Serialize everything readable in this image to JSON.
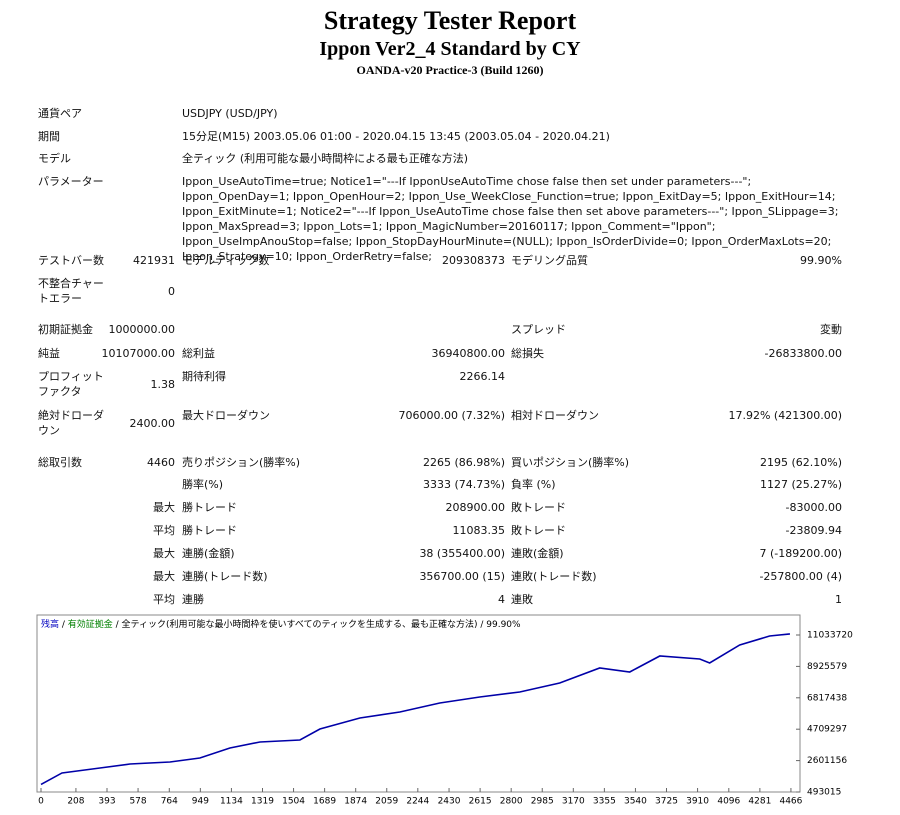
{
  "header": {
    "title": "Strategy Tester Report",
    "subtitle": "Ippon Ver2_4 Standard by CY",
    "build": "OANDA-v20 Practice-3 (Build 1260)"
  },
  "rows": [
    {
      "label": "通貨ペア",
      "label2": "USDJPY (USD/JPY)"
    },
    {
      "label": "期間",
      "label2": "15分足(M15) 2003.05.06 01:00 - 2020.04.15 13:45 (2003.05.04 - 2020.04.21)"
    },
    {
      "label": "モデル",
      "label2": "全ティック (利用可能な最小時間枠による最も正確な方法)"
    },
    {
      "label": "パラメーター",
      "label2": "Ippon_UseAutoTime=true; Notice1=\"---If IpponUseAutoTime chose false then set under parameters---\"; Ippon_OpenDay=1; Ippon_OpenHour=2; Ippon_Use_WeekClose_Function=true; Ippon_ExitDay=5; Ippon_ExitHour=14; Ippon_ExitMinute=1; Notice2=\"---If Ippon_UseAutoTime chose false then set above parameters---\"; Ippon_SLippage=3; Ippon_MaxSpread=3; Ippon_Lots=1; Ippon_MagicNumber=20160117; Ippon_Comment=\"Ippon\"; Ippon_UseImpAnouStop=false; Ippon_StopDayHourMinute=(NULL); Ippon_IsOrderDivide=0; Ippon_OrderMaxLots=20; Ippon_Strategy=10; Ippon_OrderRetry=false;"
    },
    {
      "label": "テストバー数",
      "value": "421931",
      "label2": "モデルティック数",
      "value2": "209308373",
      "label3": "モデリング品質",
      "value3": "99.90%"
    },
    {
      "label": "不整合チャートエラー",
      "value": "0"
    },
    {
      "label": "初期証拠金",
      "value": "1000000.00",
      "label3": "スプレッド",
      "value3": "変動"
    },
    {
      "label": "純益",
      "value": "10107000.00",
      "label2": "総利益",
      "value2": "36940800.00",
      "label3": "総損失",
      "value3": "-26833800.00"
    },
    {
      "label": "プロフィットファクタ",
      "value": "1.38",
      "label2": "期待利得",
      "value2": "2266.14"
    },
    {
      "label": "絶対ドローダウン",
      "value": "2400.00",
      "label2": "最大ドローダウン",
      "value2": "706000.00 (7.32%)",
      "label3": "相対ドローダウン",
      "value3": "17.92% (421300.00)"
    },
    {
      "label": "総取引数",
      "value": "4460",
      "label2": "売りポジション(勝率%)",
      "value2": "2265 (86.98%)",
      "label3": "買いポジション(勝率%)",
      "value3": "2195 (62.10%)"
    },
    {
      "label2": "勝率(%)",
      "value2": "3333 (74.73%)",
      "label3": "負率 (%)",
      "value3": "1127 (25.27%)"
    },
    {
      "value": "最大",
      "label2": "勝トレード",
      "value2": "208900.00",
      "label3": "敗トレード",
      "value3": "-83000.00"
    },
    {
      "value": "平均",
      "label2": "勝トレード",
      "value2": "11083.35",
      "label3": "敗トレード",
      "value3": "-23809.94"
    },
    {
      "value": "最大",
      "label2": "連勝(金額)",
      "value2": "38 (355400.00)",
      "label3": "連敗(金額)",
      "value3": "7 (-189200.00)"
    },
    {
      "value": "最大",
      "label2": "連勝(トレード数)",
      "value2": "356700.00 (15)",
      "label3": "連敗(トレード数)",
      "value3": "-257800.00 (4)"
    },
    {
      "value": "平均",
      "label2": "連勝",
      "value2": "4",
      "label3": "連敗",
      "value3": "1"
    }
  ],
  "chart_data": {
    "type": "line",
    "legend": [
      {
        "text": "残高",
        "color": "#0000c0"
      },
      {
        "text": " / ",
        "color": "#000000"
      },
      {
        "text": "有効証拠金",
        "color": "#008000"
      },
      {
        "text": " / 全ティック(利用可能な最小時間枠を使いすべてのティックを生成する、最も正確な方法) / 99.90%",
        "color": "#000000"
      }
    ],
    "x": [
      0,
      125,
      351,
      530,
      768,
      946,
      1125,
      1304,
      1542,
      1661,
      1899,
      2137,
      2375,
      2613,
      2851,
      3089,
      3327,
      3506,
      3685,
      3923,
      3982,
      4161,
      4339,
      4460
    ],
    "series": [
      {
        "color": "#0000a8",
        "values": [
          1000000,
          1770000,
          2104000,
          2373000,
          2507000,
          2776000,
          3447000,
          3850000,
          3984000,
          4723000,
          5461000,
          5864000,
          6468000,
          6871000,
          7207000,
          7811000,
          8818000,
          8550000,
          9624000,
          9422000,
          9154000,
          10362000,
          10966000,
          11107000
        ]
      }
    ],
    "xlim": [
      0,
      4520
    ],
    "xticks": [
      0,
      208,
      393,
      578,
      764,
      949,
      1134,
      1319,
      1504,
      1689,
      1874,
      2059,
      2244,
      2430,
      2615,
      2800,
      2985,
      3170,
      3355,
      3540,
      3725,
      3910,
      4096,
      4281,
      4466
    ],
    "ylim": [
      493015,
      12376000
    ],
    "yticks": [
      493015,
      2601156,
      4709297,
      6817438,
      8925579,
      11033720
    ]
  }
}
